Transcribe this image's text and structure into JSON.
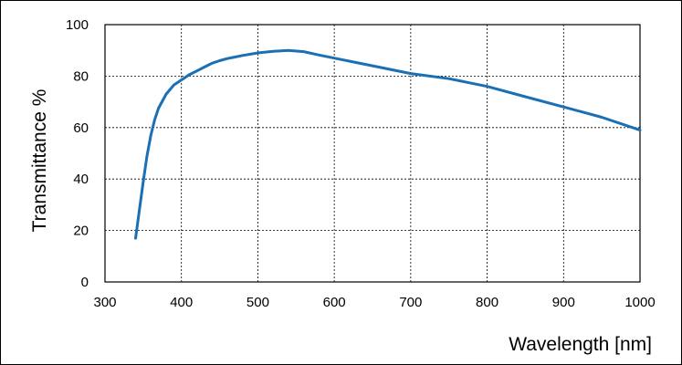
{
  "chart_data": {
    "type": "line",
    "title": "",
    "xlabel": "Wavelength [nm]",
    "ylabel": "Transmittance %",
    "xlim": [
      300,
      1000
    ],
    "ylim": [
      0,
      100
    ],
    "x_ticks": [
      300,
      400,
      500,
      600,
      700,
      800,
      900,
      1000
    ],
    "y_ticks": [
      0,
      20,
      40,
      60,
      80,
      100
    ],
    "grid": true,
    "legend": "none",
    "series": [
      {
        "color": "#1a6fb5",
        "x": [
          340,
          345,
          350,
          355,
          360,
          365,
          370,
          380,
          390,
          400,
          410,
          420,
          430,
          440,
          450,
          460,
          480,
          500,
          520,
          540,
          560,
          580,
          600,
          650,
          700,
          750,
          800,
          850,
          900,
          950,
          1000
        ],
        "y": [
          17,
          28,
          39,
          49,
          57,
          63,
          67.5,
          73,
          76.5,
          78.5,
          80.5,
          82,
          83.5,
          85,
          86,
          86.8,
          88,
          89,
          89.6,
          90,
          89.5,
          88.2,
          87,
          84,
          81,
          79,
          76,
          72,
          68,
          64,
          59
        ]
      }
    ]
  }
}
